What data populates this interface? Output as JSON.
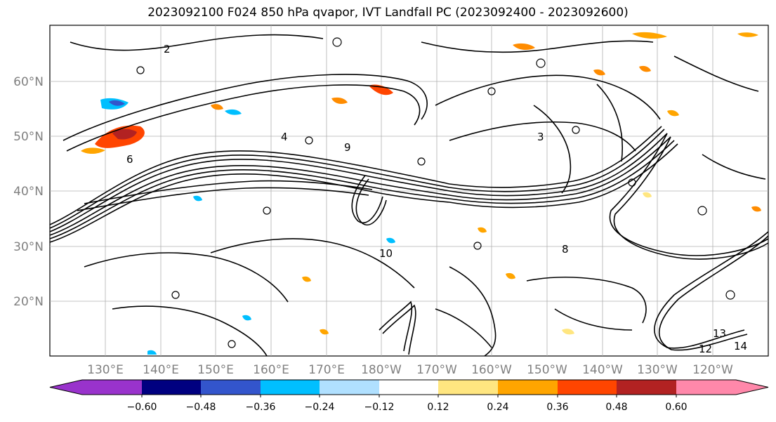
{
  "title": "2023092100 F024 850 hPa qvapor, IVT Landfall PC (2023092400 - 2023092600)",
  "map": {
    "lat_labels": [
      "60°N",
      "50°N",
      "40°N",
      "30°N",
      "20°N"
    ],
    "lon_labels": [
      "130°E",
      "140°E",
      "150°E",
      "160°E",
      "170°E",
      "180°W",
      "170°W",
      "160°W",
      "150°W",
      "140°W",
      "130°W",
      "120°W"
    ],
    "contour_labels": [
      "2",
      "3",
      "4",
      "6",
      "8",
      "9",
      "10",
      "12",
      "13",
      "14"
    ]
  },
  "colorbar": {
    "colors": [
      "#9933cc",
      "#000080",
      "#3355cc",
      "#00bfff",
      "#b0e0ff",
      "#ffffff",
      "#ffe680",
      "#ffa500",
      "#ff4500",
      "#b22222",
      "#ff88aa"
    ],
    "ticks": [
      "−0.60",
      "−0.48",
      "−0.36",
      "−0.24",
      "−0.12",
      "0.12",
      "0.24",
      "0.36",
      "0.48",
      "0.60"
    ]
  }
}
